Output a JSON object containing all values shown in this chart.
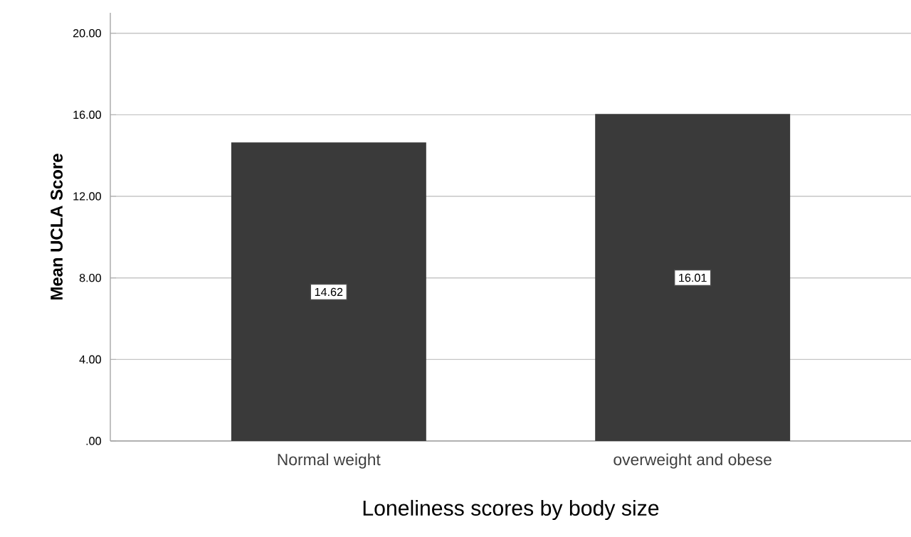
{
  "chart_data": {
    "type": "bar",
    "xlabel": "Loneliness scores by body size",
    "ylabel": "Mean UCLA Score",
    "categories": [
      "Normal weight",
      "overweight and obese"
    ],
    "values": [
      14.62,
      16.01
    ],
    "color": "#3a3a3a",
    "value_labels": [
      "14.62",
      "16.01"
    ],
    "ylim": [
      0,
      21
    ],
    "yticks": [
      {
        "value": 0,
        "label": ".00"
      },
      {
        "value": 4,
        "label": "4.00"
      },
      {
        "value": 8,
        "label": "8.00"
      },
      {
        "value": 12,
        "label": "12.00"
      },
      {
        "value": 16,
        "label": "16.00"
      },
      {
        "value": 20,
        "label": "20.00"
      }
    ],
    "grid": "y"
  }
}
